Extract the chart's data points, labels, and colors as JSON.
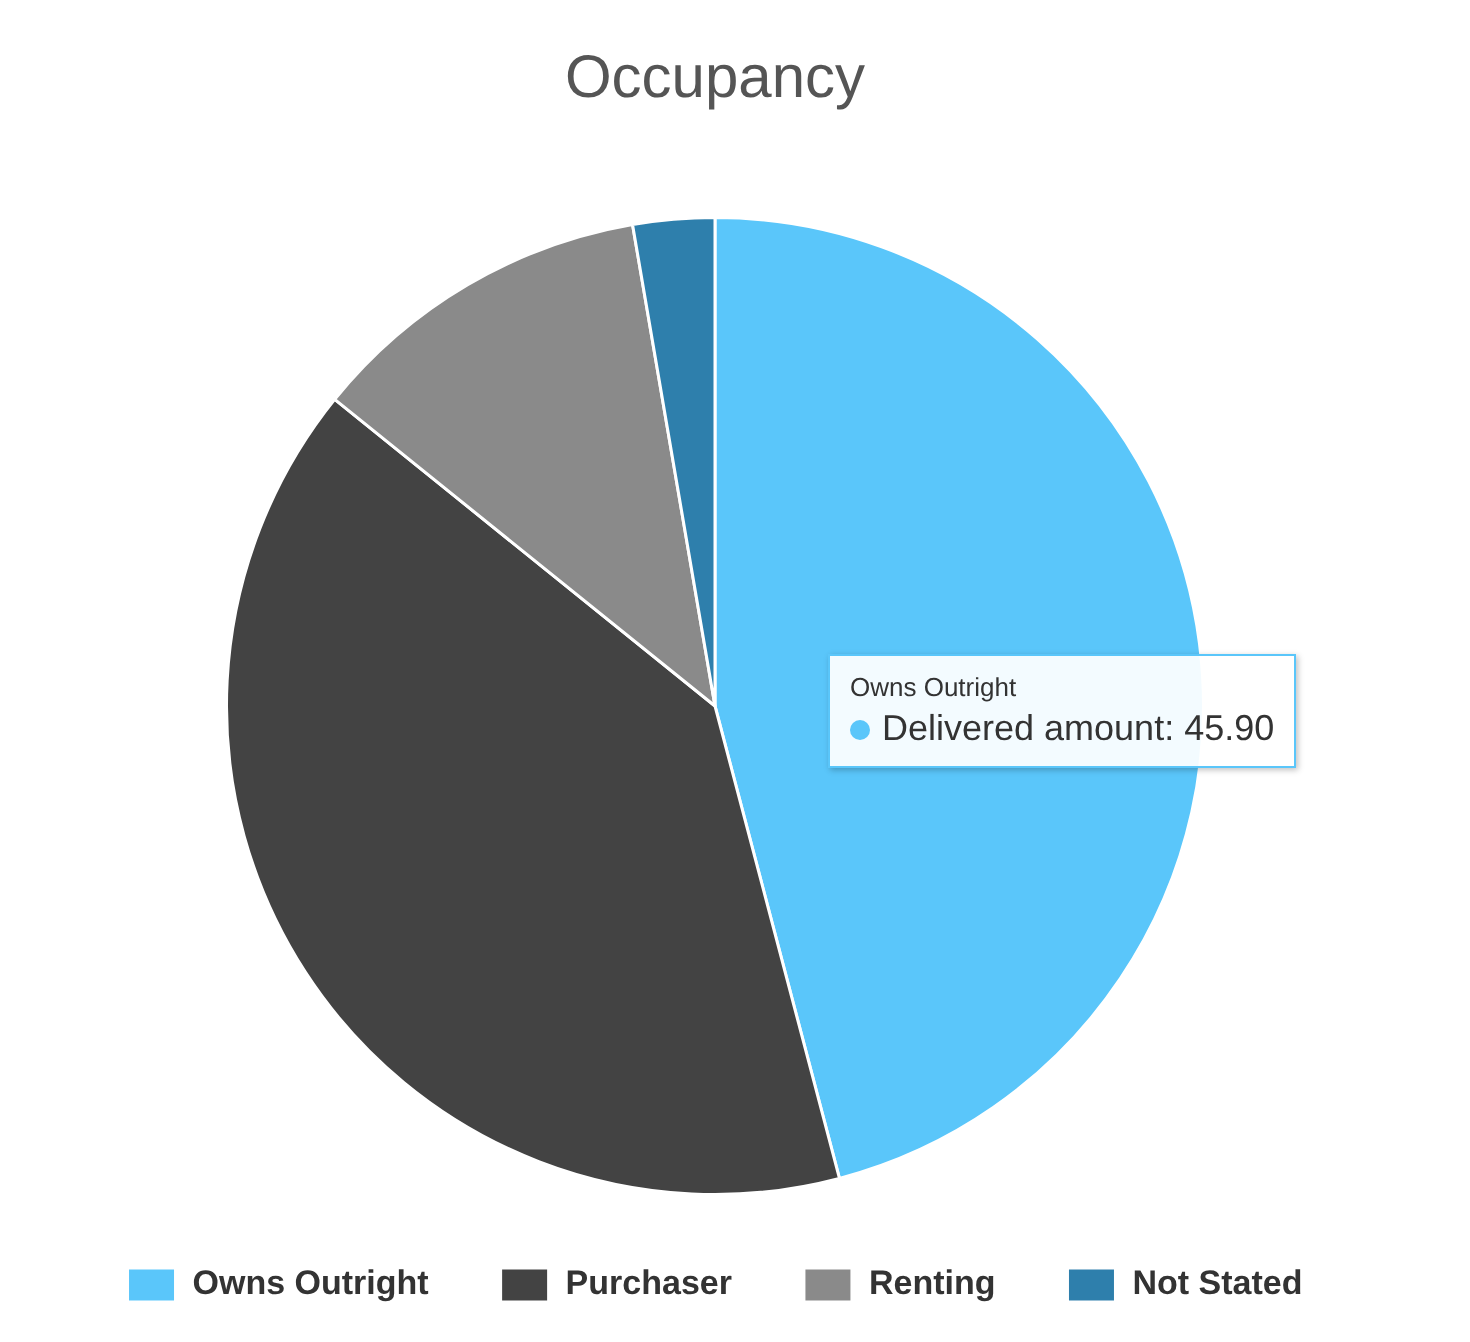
{
  "chart_data": {
    "type": "pie",
    "title": "Occupancy",
    "categories": [
      "Owns Outright",
      "Purchaser",
      "Renting",
      "Not Stated"
    ],
    "values": [
      45.9,
      39.9,
      11.5,
      2.7
    ],
    "colors": [
      "#5ac6fa",
      "#434343",
      "#8a8a8a",
      "#2e7fac"
    ],
    "legend": "bottom",
    "annotations": [
      "Owns Outright",
      "Delivered amount: 45.90"
    ]
  }
}
